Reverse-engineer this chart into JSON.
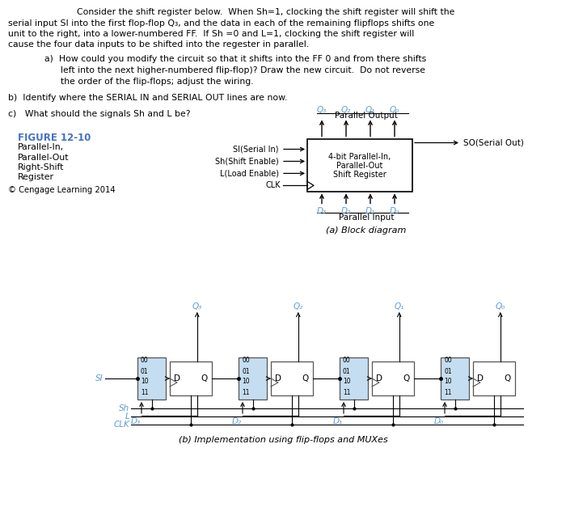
{
  "background_color": "#ffffff",
  "text_color_main": "#000000",
  "text_color_blue": "#4472c4",
  "cyan": "#5b9bd5",
  "black": "#000000",
  "gray": "#555555",
  "light_blue_fill": "#c5ddf0",
  "main_text_line1": "Consider the shift register below.  When Sh=1, clocking the shift register will shift the",
  "main_text_line2": "serial input SI into the first flop-flop Q₃, and the data in each of the remaining flipflops shifts one",
  "main_text_line3": "unit to the right, into a lower-numbered FF.  If Sh =0 and L=1, clocking the shift register will",
  "main_text_line4": "cause the four data inputs to be shifted into the regester in parallel.",
  "sub_a_line1": "a)  How could you modify the circuit so that it shifts into the FF 0 and from there shifts",
  "sub_a_line2": "left into the next higher-numbered flip-flop)? Draw the new circuit.  Do not reverse",
  "sub_a_line3": "the order of the flip-flops; adjust the wiring.",
  "sub_b": "b)  Identify where the SERIAL IN and SERIAL OUT lines are now.",
  "sub_c": "c)   What should the signals Sh and L be?",
  "fig_label": "FIGURE 12-10",
  "fig_sub": [
    "Parallel-In,",
    "Parallel-Out",
    "Right-Shift",
    "Register"
  ],
  "fig_copy": "© Cengage Learning 2014",
  "block_title1": "4-bit Parallel-In,",
  "block_title2": "Parallel-Out",
  "block_title3": "Shift Register",
  "parallel_output_label": "Parallel Output",
  "parallel_input_label": "Parallel Input",
  "block_diagram_caption": "(a) Block diagram",
  "impl_caption": "(b) Implementation using flip-flops and MUXes",
  "so_label": "SO(Serial Out)",
  "block_input_labels": [
    "SI(Serial In)",
    "Sh(Shift Enable)",
    "L(Load Enable)",
    "CLK"
  ],
  "q_labels_top": [
    "Q₃",
    "Q₂",
    "Q₁",
    "Q₀"
  ],
  "d_labels_bot": [
    "D₃",
    "D₂",
    "D₁",
    "D₀"
  ],
  "mux_sel_labels": [
    "00",
    "01",
    "10",
    "11"
  ],
  "si_text": "SI",
  "sh_text": "Sh",
  "l_text": "L",
  "clk_text": "CLK",
  "impl_q_labels": [
    "Q₃",
    "Q₂",
    "Q₁",
    "Q₀"
  ],
  "impl_d_labels": [
    "D₃",
    "D₂",
    "D₁",
    "D₀"
  ]
}
